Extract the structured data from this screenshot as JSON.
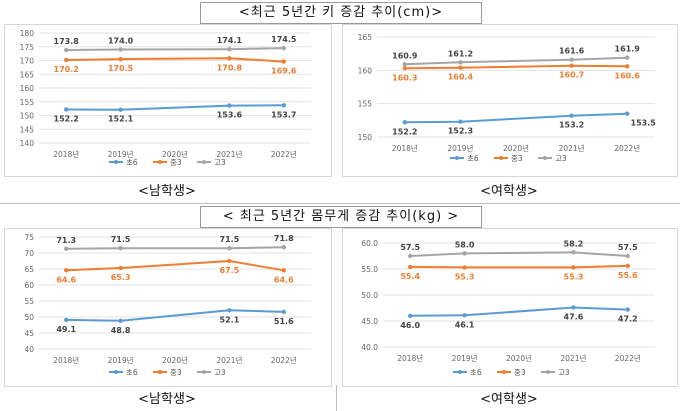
{
  "sections": [
    {
      "title": "<최근 5년간 키 증감 추이(cm)>",
      "captions": [
        "<남학생>",
        "<여학생>"
      ]
    },
    {
      "title": "< 최근 5년간 몸무게 증감 추이(kg) >",
      "captions": [
        "<남학생>",
        "<여학생>"
      ]
    }
  ],
  "colors": {
    "초6": "#5b9bd5",
    "중3": "#ed7d31",
    "고3": "#a5a5a5"
  },
  "chart_data": [
    {
      "type": "line",
      "id": "height-boys",
      "categories": [
        "2018년",
        "2019년",
        "2020년",
        "2021년",
        "2022년"
      ],
      "ylim": [
        140,
        180
      ],
      "yticks": [
        "140",
        "145",
        "150",
        "155",
        "160",
        "165",
        "170",
        "175",
        "180"
      ],
      "grid": true,
      "legend": "bottom",
      "series": [
        {
          "name": "초6",
          "values": [
            152.2,
            152.1,
            null,
            153.6,
            153.7
          ],
          "labels": [
            "152.2",
            "152.1",
            "",
            "153.6",
            "153.7"
          ]
        },
        {
          "name": "중3",
          "values": [
            170.2,
            170.5,
            null,
            170.8,
            169.6
          ],
          "labels": [
            "170.2",
            "170.5",
            "",
            "170.8",
            "169.6"
          ]
        },
        {
          "name": "고3",
          "values": [
            173.8,
            174.0,
            null,
            174.1,
            174.5
          ],
          "labels": [
            "173.8",
            "174.0",
            "",
            "174.1",
            "174.5"
          ]
        }
      ]
    },
    {
      "type": "line",
      "id": "height-girls",
      "categories": [
        "2018년",
        "2019년",
        "2020년",
        "2021년",
        "2022년"
      ],
      "ylim": [
        150,
        165
      ],
      "yticks": [
        "150",
        "155",
        "160",
        "165"
      ],
      "grid": true,
      "legend": "bottom",
      "series": [
        {
          "name": "초6",
          "values": [
            152.2,
            152.3,
            null,
            153.2,
            153.5
          ],
          "labels": [
            "152.2",
            "152.3",
            "",
            "153.2",
            "153.5"
          ]
        },
        {
          "name": "중3",
          "values": [
            160.3,
            160.4,
            null,
            160.7,
            160.6
          ],
          "labels": [
            "160.3",
            "160.4",
            "",
            "160.7",
            "160.6"
          ]
        },
        {
          "name": "고3",
          "values": [
            160.9,
            161.2,
            null,
            161.6,
            161.9
          ],
          "labels": [
            "160.9",
            "161.2",
            "",
            "161.6",
            "161.9"
          ]
        }
      ]
    },
    {
      "type": "line",
      "id": "weight-boys",
      "categories": [
        "2018년",
        "2019년",
        "2020년",
        "2021년",
        "2022년"
      ],
      "ylim": [
        40,
        75
      ],
      "yticks": [
        "40",
        "45",
        "50",
        "55",
        "60",
        "65",
        "70",
        "75"
      ],
      "grid": true,
      "legend": "bottom",
      "series": [
        {
          "name": "초6",
          "values": [
            49.1,
            48.8,
            null,
            52.1,
            51.6
          ],
          "labels": [
            "49.1",
            "48.8",
            "",
            "52.1",
            "51.6"
          ]
        },
        {
          "name": "중3",
          "values": [
            64.6,
            65.3,
            null,
            67.5,
            64.6
          ],
          "labels": [
            "64.6",
            "65.3",
            "",
            "67.5",
            "64.6"
          ]
        },
        {
          "name": "고3",
          "values": [
            71.3,
            71.5,
            null,
            71.5,
            71.8
          ],
          "labels": [
            "71.3",
            "71.5",
            "",
            "71.5",
            "71.8"
          ]
        }
      ]
    },
    {
      "type": "line",
      "id": "weight-girls",
      "categories": [
        "2018년",
        "2019년",
        "2020년",
        "2021년",
        "2022년"
      ],
      "ylim": [
        40,
        60
      ],
      "yticks": [
        "40.0",
        "45.0",
        "50.0",
        "55.0",
        "60.0"
      ],
      "grid": true,
      "legend": "bottom",
      "series": [
        {
          "name": "초6",
          "values": [
            46.0,
            46.1,
            null,
            47.6,
            47.2
          ],
          "labels": [
            "46.0",
            "46.1",
            "",
            "47.6",
            "47.2"
          ]
        },
        {
          "name": "중3",
          "values": [
            55.4,
            55.3,
            null,
            55.3,
            55.6
          ],
          "labels": [
            "55.4",
            "55.3",
            "",
            "55.3",
            "55.6"
          ]
        },
        {
          "name": "고3",
          "values": [
            57.5,
            58.0,
            null,
            58.2,
            57.5
          ],
          "labels": [
            "57.5",
            "58.0",
            "",
            "58.2",
            "57.5"
          ]
        }
      ]
    }
  ]
}
